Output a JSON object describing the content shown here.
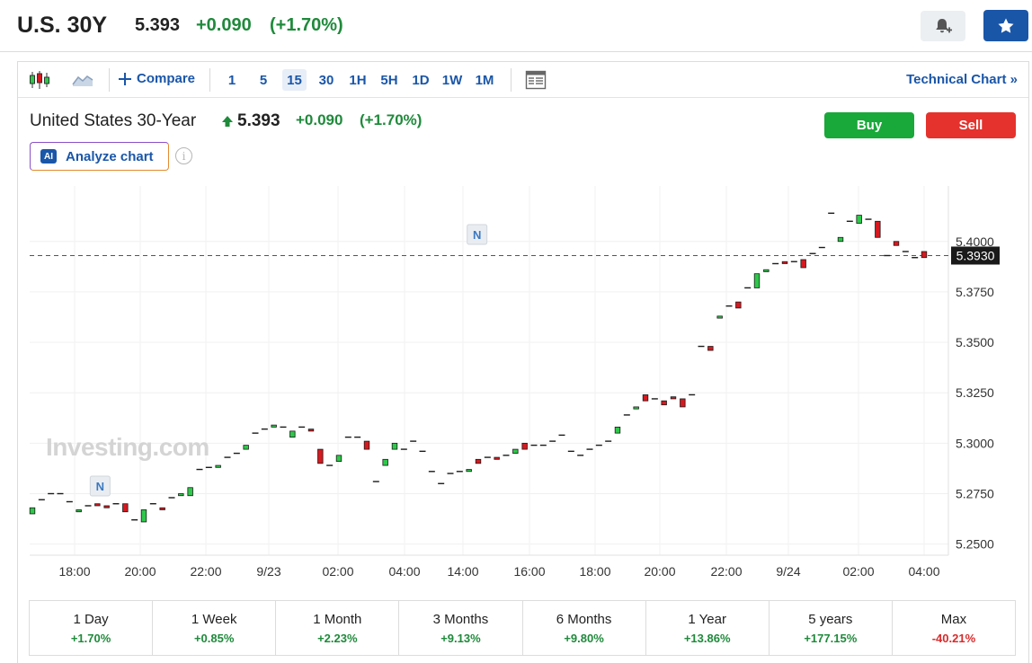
{
  "header": {
    "ticker": "U.S. 30Y",
    "price": "5.393",
    "change": "+0.090",
    "change_pct": "(+1.70%)",
    "alert_icon": "bell-plus-icon",
    "watchlist_icon": "star-icon"
  },
  "toolbar": {
    "chart_type_icons": [
      "candlestick-icon",
      "area-chart-icon"
    ],
    "compare_label": "Compare",
    "intervals": [
      "1",
      "5",
      "15",
      "30",
      "1H",
      "5H",
      "1D",
      "1W",
      "1M"
    ],
    "active_interval": "15",
    "layout_icon": "layout-icon",
    "technical_link": "Technical Chart »"
  },
  "instrument": {
    "name": "United States 30-Year",
    "price": "5.393",
    "change": "+0.090",
    "change_pct": "(+1.70%)",
    "buy_label": "Buy",
    "sell_label": "Sell",
    "analyze_badge": "AI",
    "analyze_label": "Analyze chart",
    "info_glyph": "i"
  },
  "colors": {
    "up": "#1f8a3b",
    "down": "#d92b2b",
    "candle_up": "#2ec84a",
    "candle_down": "#d7191f",
    "link": "#1a56a8",
    "buy": "#19a83a",
    "sell": "#e5322c"
  },
  "chart_data": {
    "type": "candlestick",
    "watermark": "Investing.com",
    "x_tick_labels": [
      "18:00",
      "20:00",
      "22:00",
      "9/23",
      "02:00",
      "04:00",
      "14:00",
      "16:00",
      "18:00",
      "20:00",
      "22:00",
      "9/24",
      "02:00",
      "04:00"
    ],
    "y_tick_labels": [
      "5.4000",
      "5.3750",
      "5.3500",
      "5.3250",
      "5.3000",
      "5.2750",
      "5.2500"
    ],
    "ylim": [
      5.2445,
      5.4275
    ],
    "last_price": 5.393,
    "last_price_label": "5.3930",
    "news_markers": [
      {
        "label": "N",
        "index": 7
      },
      {
        "label": "N",
        "index": 47
      }
    ],
    "candles": [
      {
        "o": 5.265,
        "c": 5.268
      },
      {
        "o": 5.272,
        "c": 5.272
      },
      {
        "o": 5.275,
        "c": 5.275
      },
      {
        "o": 5.275,
        "c": 5.275
      },
      {
        "o": 5.271,
        "c": 5.271
      },
      {
        "o": 5.266,
        "c": 5.267
      },
      {
        "o": 5.269,
        "c": 5.269
      },
      {
        "o": 5.27,
        "c": 5.269
      },
      {
        "o": 5.269,
        "c": 5.268
      },
      {
        "o": 5.27,
        "c": 5.27
      },
      {
        "o": 5.27,
        "c": 5.266
      },
      {
        "o": 5.262,
        "c": 5.262
      },
      {
        "o": 5.261,
        "c": 5.267
      },
      {
        "o": 5.27,
        "c": 5.27
      },
      {
        "o": 5.268,
        "c": 5.267
      },
      {
        "o": 5.273,
        "c": 5.273
      },
      {
        "o": 5.274,
        "c": 5.275
      },
      {
        "o": 5.274,
        "c": 5.278
      },
      {
        "o": 5.287,
        "c": 5.287
      },
      {
        "o": 5.288,
        "c": 5.288
      },
      {
        "o": 5.288,
        "c": 5.289
      },
      {
        "o": 5.293,
        "c": 5.293
      },
      {
        "o": 5.295,
        "c": 5.295
      },
      {
        "o": 5.297,
        "c": 5.299
      },
      {
        "o": 5.305,
        "c": 5.305
      },
      {
        "o": 5.307,
        "c": 5.307
      },
      {
        "o": 5.308,
        "c": 5.309
      },
      {
        "o": 5.308,
        "c": 5.308
      },
      {
        "o": 5.303,
        "c": 5.306
      },
      {
        "o": 5.308,
        "c": 5.308
      },
      {
        "o": 5.307,
        "c": 5.306
      },
      {
        "o": 5.297,
        "c": 5.29
      },
      {
        "o": 5.289,
        "c": 5.289
      },
      {
        "o": 5.291,
        "c": 5.294
      },
      {
        "o": 5.303,
        "c": 5.303
      },
      {
        "o": 5.303,
        "c": 5.303
      },
      {
        "o": 5.301,
        "c": 5.297
      },
      {
        "o": 5.281,
        "c": 5.281
      },
      {
        "o": 5.289,
        "c": 5.292
      },
      {
        "o": 5.297,
        "c": 5.3
      },
      {
        "o": 5.297,
        "c": 5.297
      },
      {
        "o": 5.301,
        "c": 5.301
      },
      {
        "o": 5.296,
        "c": 5.296
      },
      {
        "o": 5.286,
        "c": 5.286
      },
      {
        "o": 5.28,
        "c": 5.28
      },
      {
        "o": 5.285,
        "c": 5.285
      },
      {
        "o": 5.286,
        "c": 5.286
      },
      {
        "o": 5.286,
        "c": 5.287
      },
      {
        "o": 5.292,
        "c": 5.29
      },
      {
        "o": 5.293,
        "c": 5.293
      },
      {
        "o": 5.293,
        "c": 5.292
      },
      {
        "o": 5.294,
        "c": 5.294
      },
      {
        "o": 5.295,
        "c": 5.297
      },
      {
        "o": 5.3,
        "c": 5.297
      },
      {
        "o": 5.299,
        "c": 5.299
      },
      {
        "o": 5.299,
        "c": 5.299
      },
      {
        "o": 5.301,
        "c": 5.301
      },
      {
        "o": 5.304,
        "c": 5.304
      },
      {
        "o": 5.296,
        "c": 5.296
      },
      {
        "o": 5.294,
        "c": 5.294
      },
      {
        "o": 5.297,
        "c": 5.297
      },
      {
        "o": 5.299,
        "c": 5.299
      },
      {
        "o": 5.301,
        "c": 5.301
      },
      {
        "o": 5.305,
        "c": 5.308
      },
      {
        "o": 5.314,
        "c": 5.314
      },
      {
        "o": 5.317,
        "c": 5.318
      },
      {
        "o": 5.324,
        "c": 5.321
      },
      {
        "o": 5.322,
        "c": 5.322
      },
      {
        "o": 5.321,
        "c": 5.319
      },
      {
        "o": 5.323,
        "c": 5.322
      },
      {
        "o": 5.322,
        "c": 5.318
      },
      {
        "o": 5.324,
        "c": 5.324
      },
      {
        "o": 5.348,
        "c": 5.348
      },
      {
        "o": 5.348,
        "c": 5.346
      },
      {
        "o": 5.362,
        "c": 5.363
      },
      {
        "o": 5.368,
        "c": 5.368
      },
      {
        "o": 5.37,
        "c": 5.367
      },
      {
        "o": 5.377,
        "c": 5.377
      },
      {
        "o": 5.377,
        "c": 5.384
      },
      {
        "o": 5.385,
        "c": 5.386
      },
      {
        "o": 5.389,
        "c": 5.389
      },
      {
        "o": 5.39,
        "c": 5.389
      },
      {
        "o": 5.39,
        "c": 5.39
      },
      {
        "o": 5.391,
        "c": 5.387
      },
      {
        "o": 5.394,
        "c": 5.394
      },
      {
        "o": 5.397,
        "c": 5.397
      },
      {
        "o": 5.414,
        "c": 5.414
      },
      {
        "o": 5.4,
        "c": 5.402
      },
      {
        "o": 5.41,
        "c": 5.41
      },
      {
        "o": 5.409,
        "c": 5.413
      },
      {
        "o": 5.411,
        "c": 5.411
      },
      {
        "o": 5.41,
        "c": 5.402
      },
      {
        "o": 5.393,
        "c": 5.393
      },
      {
        "o": 5.4,
        "c": 5.398
      },
      {
        "o": 5.395,
        "c": 5.395
      },
      {
        "o": 5.392,
        "c": 5.392
      },
      {
        "o": 5.395,
        "c": 5.392
      }
    ]
  },
  "periods": [
    {
      "label": "1 Day",
      "value": "+1.70%",
      "positive": true
    },
    {
      "label": "1 Week",
      "value": "+0.85%",
      "positive": true
    },
    {
      "label": "1 Month",
      "value": "+2.23%",
      "positive": true
    },
    {
      "label": "3 Months",
      "value": "+9.13%",
      "positive": true
    },
    {
      "label": "6 Months",
      "value": "+9.80%",
      "positive": true
    },
    {
      "label": "1 Year",
      "value": "+13.86%",
      "positive": true
    },
    {
      "label": "5 years",
      "value": "+177.15%",
      "positive": true
    },
    {
      "label": "Max",
      "value": "-40.21%",
      "positive": false
    }
  ]
}
